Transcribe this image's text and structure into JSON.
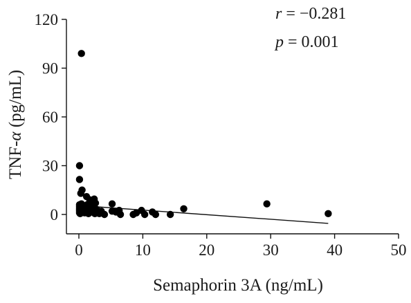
{
  "chart_data": {
    "type": "scatter",
    "xlabel": "Semaphorin 3A (ng/mL)",
    "ylabel_prefix": "TNF-",
    "ylabel_symbol": "α",
    "ylabel_suffix": " (pg/mL)",
    "xlim": [
      0,
      50
    ],
    "ylim": [
      0,
      120
    ],
    "xticks": [
      0,
      10,
      20,
      30,
      40,
      50
    ],
    "yticks": [
      0,
      30,
      60,
      90,
      120
    ],
    "grid": false,
    "annotation": {
      "r_symbol": "r",
      "r_value": " = −0.281",
      "p_symbol": "p",
      "p_value": " = 0.001"
    },
    "trendline": {
      "x": [
        0,
        39
      ],
      "y": [
        5.5,
        -5.5
      ]
    },
    "points": [
      {
        "x": 0.4,
        "y": 99
      },
      {
        "x": 0.1,
        "y": 30
      },
      {
        "x": 0.1,
        "y": 21.5
      },
      {
        "x": 0.5,
        "y": 15
      },
      {
        "x": 0.3,
        "y": 13
      },
      {
        "x": 0.1,
        "y": 6
      },
      {
        "x": 0.1,
        "y": 5
      },
      {
        "x": 0.1,
        "y": 4
      },
      {
        "x": 0.1,
        "y": 3
      },
      {
        "x": 0.1,
        "y": 2
      },
      {
        "x": 0.1,
        "y": 1
      },
      {
        "x": 0.2,
        "y": 0.5
      },
      {
        "x": 0.4,
        "y": 6.5
      },
      {
        "x": 0.6,
        "y": 5
      },
      {
        "x": 0.7,
        "y": 3.5
      },
      {
        "x": 0.8,
        "y": 2
      },
      {
        "x": 0.9,
        "y": 1
      },
      {
        "x": 1.0,
        "y": 4.5
      },
      {
        "x": 1.2,
        "y": 11
      },
      {
        "x": 1.3,
        "y": 6
      },
      {
        "x": 1.4,
        "y": 2.5
      },
      {
        "x": 1.5,
        "y": 0.5
      },
      {
        "x": 1.7,
        "y": 9
      },
      {
        "x": 1.8,
        "y": 3.5
      },
      {
        "x": 2.0,
        "y": 1.5
      },
      {
        "x": 2.2,
        "y": 5.5
      },
      {
        "x": 2.4,
        "y": 9.5
      },
      {
        "x": 2.5,
        "y": 0.5
      },
      {
        "x": 2.6,
        "y": 7
      },
      {
        "x": 2.8,
        "y": 3
      },
      {
        "x": 3.0,
        "y": 1
      },
      {
        "x": 3.2,
        "y": 0.5
      },
      {
        "x": 3.5,
        "y": 2
      },
      {
        "x": 4.0,
        "y": 0
      },
      {
        "x": 5.2,
        "y": 6.5
      },
      {
        "x": 5.2,
        "y": 2
      },
      {
        "x": 5.8,
        "y": 1.5
      },
      {
        "x": 6.3,
        "y": 2.5
      },
      {
        "x": 6.5,
        "y": 0
      },
      {
        "x": 8.5,
        "y": 0
      },
      {
        "x": 9.0,
        "y": 1
      },
      {
        "x": 9.8,
        "y": 2.5
      },
      {
        "x": 10.3,
        "y": 0
      },
      {
        "x": 11.5,
        "y": 1.5
      },
      {
        "x": 12.0,
        "y": 0
      },
      {
        "x": 14.3,
        "y": 0
      },
      {
        "x": 16.4,
        "y": 3.5
      },
      {
        "x": 29.4,
        "y": 6.5
      },
      {
        "x": 39.0,
        "y": 0.5
      }
    ]
  }
}
